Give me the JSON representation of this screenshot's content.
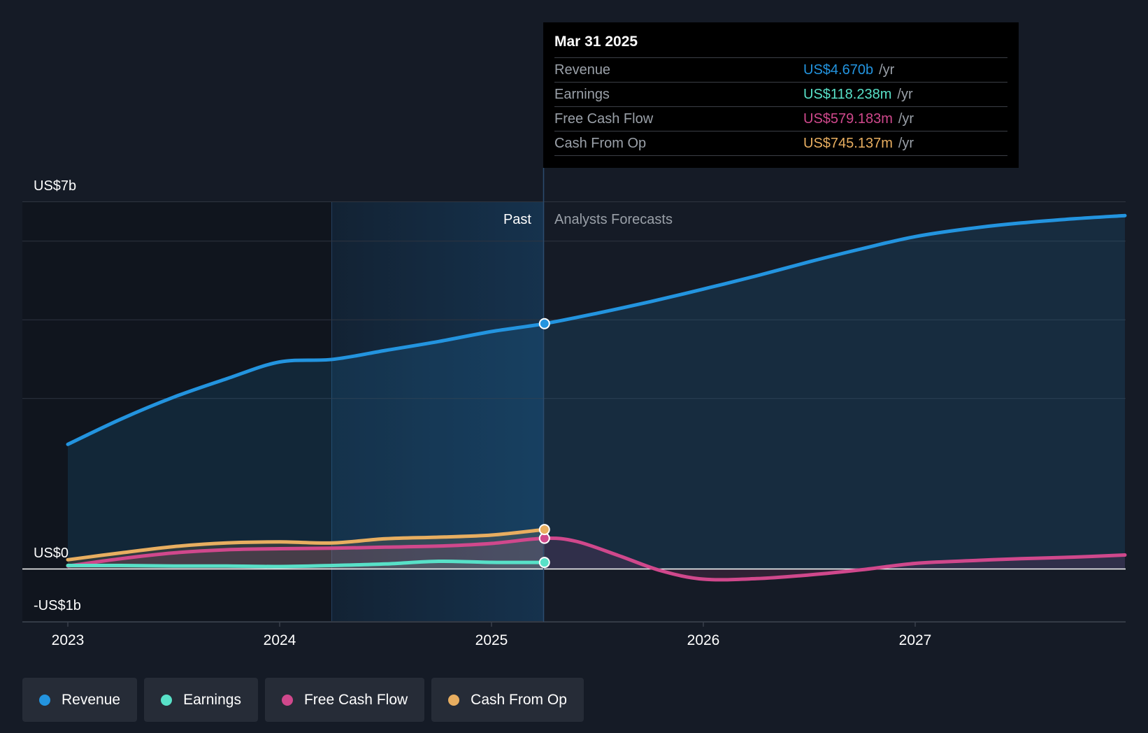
{
  "chart_data": {
    "type": "line",
    "x_ticks": [
      "2023",
      "2024",
      "2025",
      "2026",
      "2027"
    ],
    "y_labels": [
      "US$7b",
      "US$0",
      "-US$1b"
    ],
    "ylim": [
      -1,
      7
    ],
    "past_label": "Past",
    "forecast_label": "Analysts Forecasts",
    "split_date": 2025.25,
    "series": [
      {
        "name": "Revenue",
        "color": "#2394df",
        "points": [
          [
            2023.0,
            2.37
          ],
          [
            2023.25,
            2.85
          ],
          [
            2023.5,
            3.27
          ],
          [
            2023.75,
            3.62
          ],
          [
            2024.0,
            3.94
          ],
          [
            2024.25,
            3.99
          ],
          [
            2024.5,
            4.16
          ],
          [
            2024.75,
            4.33
          ],
          [
            2025.0,
            4.52
          ],
          [
            2025.25,
            4.67
          ],
          [
            2025.5,
            4.87
          ],
          [
            2025.75,
            5.09
          ],
          [
            2026.0,
            5.33
          ],
          [
            2026.25,
            5.58
          ],
          [
            2026.5,
            5.85
          ],
          [
            2026.75,
            6.1
          ],
          [
            2027.0,
            6.33
          ],
          [
            2027.25,
            6.48
          ],
          [
            2027.5,
            6.59
          ],
          [
            2027.75,
            6.67
          ],
          [
            2027.99,
            6.73
          ]
        ]
      },
      {
        "name": "Earnings",
        "color": "#58e1c8",
        "points": [
          [
            2023.0,
            0.06
          ],
          [
            2023.25,
            0.06
          ],
          [
            2023.5,
            0.05
          ],
          [
            2023.75,
            0.05
          ],
          [
            2024.0,
            0.04
          ],
          [
            2024.25,
            0.06
          ],
          [
            2024.5,
            0.09
          ],
          [
            2024.75,
            0.14
          ],
          [
            2025.0,
            0.12
          ],
          [
            2025.25,
            0.118
          ]
        ]
      },
      {
        "name": "Free Cash Flow",
        "color": "#d0488c",
        "points": [
          [
            2023.0,
            0.05
          ],
          [
            2023.25,
            0.19
          ],
          [
            2023.5,
            0.3
          ],
          [
            2023.75,
            0.36
          ],
          [
            2024.0,
            0.38
          ],
          [
            2024.25,
            0.39
          ],
          [
            2024.5,
            0.41
          ],
          [
            2024.75,
            0.43
          ],
          [
            2025.0,
            0.48
          ],
          [
            2025.25,
            0.579
          ],
          [
            2025.4,
            0.52
          ],
          [
            2025.6,
            0.25
          ],
          [
            2025.8,
            -0.04
          ],
          [
            2026.0,
            -0.2
          ],
          [
            2026.25,
            -0.19
          ],
          [
            2026.5,
            -0.12
          ],
          [
            2026.75,
            -0.02
          ],
          [
            2027.0,
            0.1
          ],
          [
            2027.25,
            0.15
          ],
          [
            2027.5,
            0.19
          ],
          [
            2027.75,
            0.22
          ],
          [
            2027.99,
            0.26
          ]
        ]
      },
      {
        "name": "Cash From Op",
        "color": "#e8ae60",
        "points": [
          [
            2023.0,
            0.17
          ],
          [
            2023.25,
            0.3
          ],
          [
            2023.5,
            0.42
          ],
          [
            2023.75,
            0.49
          ],
          [
            2024.0,
            0.51
          ],
          [
            2024.25,
            0.49
          ],
          [
            2024.5,
            0.57
          ],
          [
            2024.75,
            0.6
          ],
          [
            2025.0,
            0.64
          ],
          [
            2025.25,
            0.745
          ]
        ]
      }
    ]
  },
  "tooltip": {
    "date": "Mar 31 2025",
    "rows": [
      {
        "label": "Revenue",
        "value": "US$4.670b",
        "unit": "/yr",
        "color": "#2394df"
      },
      {
        "label": "Earnings",
        "value": "US$118.238m",
        "unit": "/yr",
        "color": "#58e1c8"
      },
      {
        "label": "Free Cash Flow",
        "value": "US$579.183m",
        "unit": "/yr",
        "color": "#d0488c"
      },
      {
        "label": "Cash From Op",
        "value": "US$745.137m",
        "unit": "/yr",
        "color": "#e8ae60"
      }
    ]
  },
  "legend": [
    {
      "label": "Revenue",
      "color": "#2394df"
    },
    {
      "label": "Earnings",
      "color": "#58e1c8"
    },
    {
      "label": "Free Cash Flow",
      "color": "#d0488c"
    },
    {
      "label": "Cash From Op",
      "color": "#e8ae60"
    }
  ]
}
